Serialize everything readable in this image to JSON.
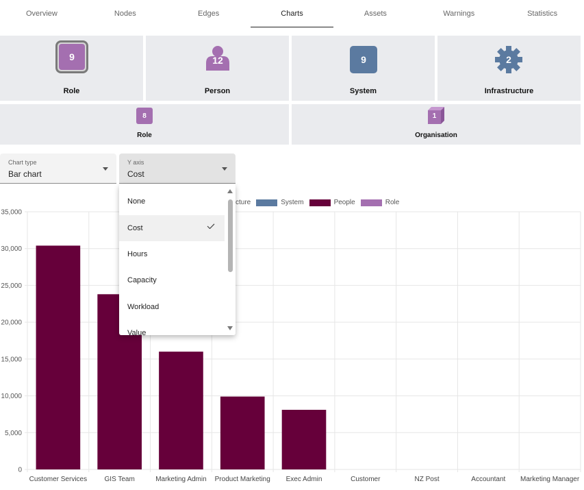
{
  "tabs": [
    "Overview",
    "Nodes",
    "Edges",
    "Charts",
    "Assets",
    "Warnings",
    "Statistics"
  ],
  "active_tab": "Charts",
  "node_types_row1": [
    {
      "label": "Role",
      "count": "9",
      "icon": "role-square-icon"
    },
    {
      "label": "Person",
      "count": "12",
      "icon": "person-icon"
    },
    {
      "label": "System",
      "count": "9",
      "icon": "system-square-icon"
    },
    {
      "label": "Infrastructure",
      "count": "2",
      "icon": "gear-icon"
    }
  ],
  "node_types_row2": [
    {
      "label": "Role",
      "count": "8",
      "icon": "role-square-icon"
    },
    {
      "label": "Organisation",
      "count": "1",
      "icon": "cube-icon"
    }
  ],
  "controls": {
    "chart_type": {
      "caption": "Chart type",
      "value": "Bar chart"
    },
    "y_axis": {
      "caption": "Y axis",
      "value": "Cost"
    }
  },
  "y_axis_menu": {
    "options": [
      "None",
      "Cost",
      "Hours",
      "Capacity",
      "Workload",
      "Value"
    ],
    "selected": "Cost"
  },
  "colors": {
    "people": "#66003a",
    "system": "#5b7aa0",
    "role": "#a46fb0",
    "infrastructure": "#5b7aa0",
    "tile_bg": "#eaebee"
  },
  "chart_data": {
    "type": "bar",
    "legend": [
      {
        "name": "cture",
        "color": "#5b7aa0"
      },
      {
        "name": "System",
        "color": "#5b7aa0"
      },
      {
        "name": "People",
        "color": "#66003a"
      },
      {
        "name": "Role",
        "color": "#a46fb0"
      }
    ],
    "categories": [
      "Customer Services",
      "GIS Team",
      "Marketing Admin",
      "Product Marketing",
      "Exec Admin",
      "Customer",
      "NZ Post",
      "Accountant",
      "Marketing Manager"
    ],
    "series": [
      {
        "name": "People",
        "values": [
          30400,
          23800,
          16000,
          9900,
          8100,
          0,
          0,
          0,
          0
        ]
      }
    ],
    "ylim": [
      0,
      35000
    ],
    "yticks": [
      "0",
      "5,000",
      "10,000",
      "15,000",
      "20,000",
      "25,000",
      "30,000",
      "35,000"
    ],
    "grid": true
  }
}
